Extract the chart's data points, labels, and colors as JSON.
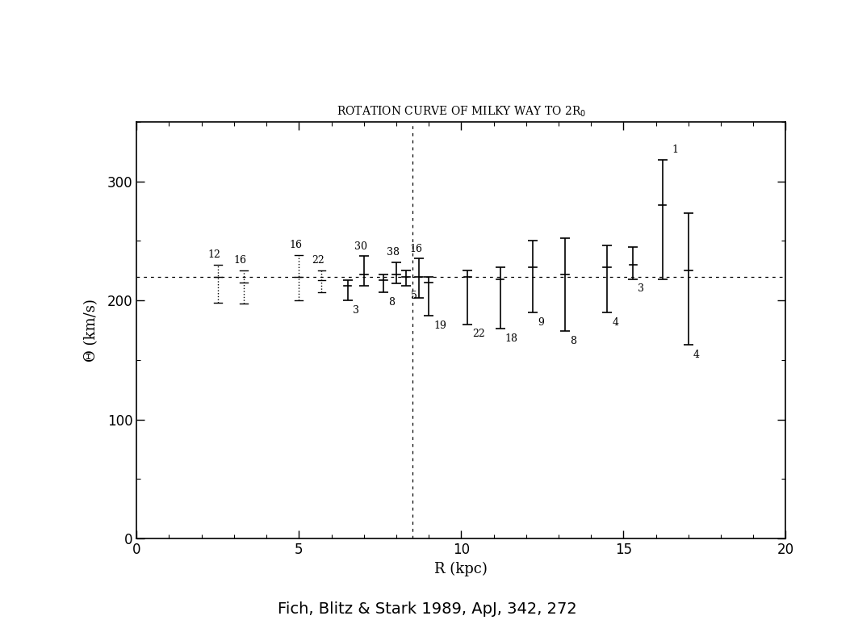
{
  "title": "ROTATION CURVE OF MILKY WAY TO 2R$_0$",
  "xlabel": "R (kpc)",
  "ylabel": "Θ (km/s)",
  "citation": "Fich, Blitz & Stark 1989, ApJ, 342, 272",
  "xlim": [
    0,
    20
  ],
  "ylim": [
    0,
    350
  ],
  "xticks": [
    0,
    5,
    10,
    15,
    20
  ],
  "yticks": [
    0,
    100,
    200,
    300
  ],
  "horizontal_line": 220,
  "vertical_line": 8.5,
  "data_points": [
    {
      "R": 2.5,
      "theta": 220,
      "err_up": 10,
      "err_down": 22,
      "n": "12",
      "n_pos": "above_left",
      "style": "dotted"
    },
    {
      "R": 3.3,
      "theta": 215,
      "err_up": 10,
      "err_down": 18,
      "n": "16",
      "n_pos": "above_left",
      "style": "dotted"
    },
    {
      "R": 5.0,
      "theta": 220,
      "err_up": 18,
      "err_down": 20,
      "n": "16",
      "n_pos": "above_left",
      "style": "dotted"
    },
    {
      "R": 5.7,
      "theta": 217,
      "err_up": 8,
      "err_down": 10,
      "n": "22",
      "n_pos": "above_left",
      "style": "dotted"
    },
    {
      "R": 6.5,
      "theta": 212,
      "err_up": 5,
      "err_down": 12,
      "n": "3",
      "n_pos": "below_right",
      "style": "solid"
    },
    {
      "R": 7.0,
      "theta": 222,
      "err_up": 15,
      "err_down": 10,
      "n": "30",
      "n_pos": "above_left",
      "style": "solid"
    },
    {
      "R": 7.6,
      "theta": 217,
      "err_up": 5,
      "err_down": 10,
      "n": "8",
      "n_pos": "below_right",
      "style": "solid"
    },
    {
      "R": 8.0,
      "theta": 222,
      "err_up": 10,
      "err_down": 8,
      "n": "38",
      "n_pos": "above_left",
      "style": "solid"
    },
    {
      "R": 8.3,
      "theta": 220,
      "err_up": 5,
      "err_down": 8,
      "n": "5",
      "n_pos": "below_right",
      "style": "solid"
    },
    {
      "R": 8.7,
      "theta": 220,
      "err_up": 15,
      "err_down": 18,
      "n": "16",
      "n_pos": "above_left",
      "style": "solid"
    },
    {
      "R": 9.0,
      "theta": 215,
      "err_up": 5,
      "err_down": 28,
      "n": "19",
      "n_pos": "below_right",
      "style": "solid"
    },
    {
      "R": 10.2,
      "theta": 220,
      "err_up": 5,
      "err_down": 40,
      "n": "22",
      "n_pos": "below_right",
      "style": "solid"
    },
    {
      "R": 11.2,
      "theta": 218,
      "err_up": 10,
      "err_down": 42,
      "n": "18",
      "n_pos": "below_right",
      "style": "solid"
    },
    {
      "R": 12.2,
      "theta": 228,
      "err_up": 22,
      "err_down": 38,
      "n": "9",
      "n_pos": "below_right",
      "style": "solid"
    },
    {
      "R": 13.2,
      "theta": 222,
      "err_up": 30,
      "err_down": 48,
      "n": "8",
      "n_pos": "below_right",
      "style": "solid"
    },
    {
      "R": 14.5,
      "theta": 228,
      "err_up": 18,
      "err_down": 38,
      "n": "4",
      "n_pos": "below_right",
      "style": "solid"
    },
    {
      "R": 15.3,
      "theta": 230,
      "err_up": 15,
      "err_down": 12,
      "n": "3",
      "n_pos": "below_right",
      "style": "solid"
    },
    {
      "R": 16.2,
      "theta": 280,
      "err_up": 38,
      "err_down": 62,
      "n": "1",
      "n_pos": "right",
      "style": "solid"
    },
    {
      "R": 17.0,
      "theta": 225,
      "err_up": 48,
      "err_down": 62,
      "n": "4",
      "n_pos": "below_right",
      "style": "solid"
    }
  ],
  "background_color": "#ffffff",
  "line_color": "#000000",
  "dotted_line_color": "#000000",
  "fontsize_title": 10,
  "fontsize_labels": 13,
  "fontsize_citation": 14,
  "fontsize_n": 9
}
